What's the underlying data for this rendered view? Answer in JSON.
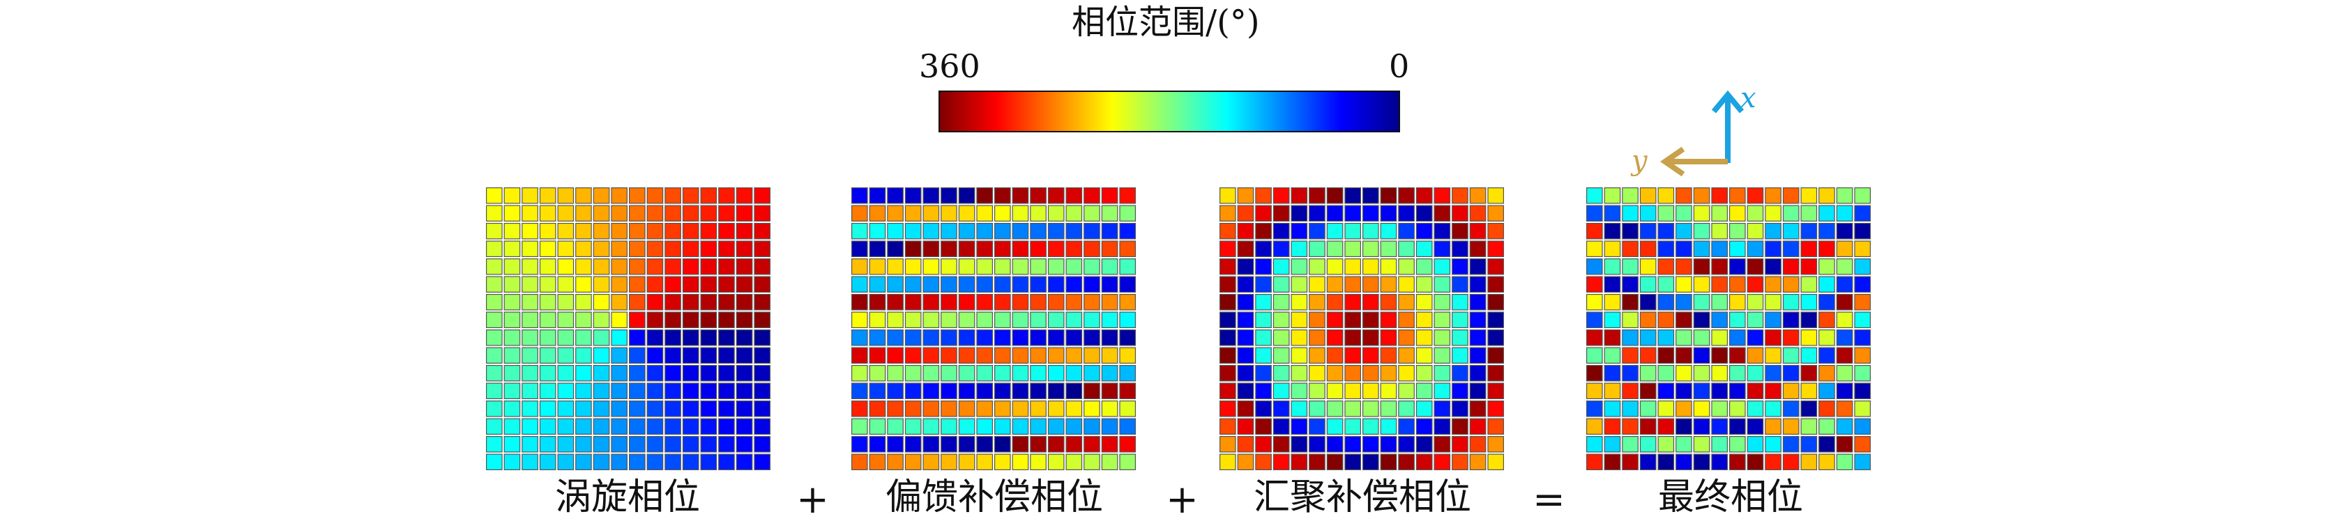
{
  "colorbar": {
    "title": "相位范围/(°)",
    "left_label": "360",
    "right_label": "0",
    "colormap": [
      "#7f0000",
      "#ff0000",
      "#ff8000",
      "#ffff00",
      "#80ff80",
      "#00ffff",
      "#0080ff",
      "#0000ff",
      "#00008f"
    ]
  },
  "operators": {
    "plus": "+",
    "equals": "="
  },
  "axes": {
    "x_label": "x",
    "y_label": "y",
    "x_color": "#1aa3e0",
    "y_color": "#c9a14a"
  },
  "panels": [
    {
      "id": "vortex",
      "caption": "涡旋相位"
    },
    {
      "id": "deflection",
      "caption": "偏馈补偿相位"
    },
    {
      "id": "focusing",
      "caption": "汇聚补偿相位"
    },
    {
      "id": "final",
      "caption": "最终相位"
    }
  ]
}
